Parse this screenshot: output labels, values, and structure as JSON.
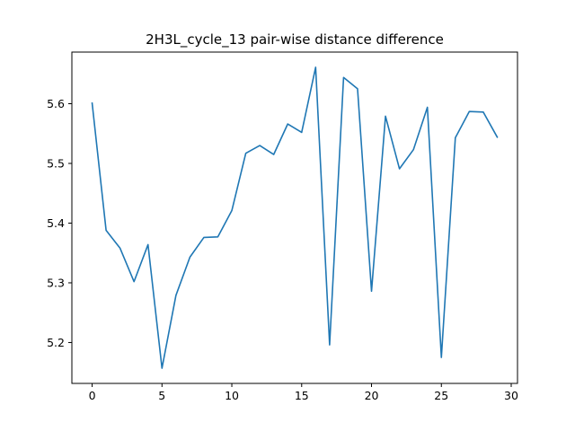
{
  "chart_data": {
    "type": "line",
    "title": "2H3L_cycle_13 pair-wise distance difference",
    "xlabel": "",
    "ylabel": "",
    "x": [
      0,
      1,
      2,
      3,
      4,
      5,
      6,
      7,
      8,
      9,
      10,
      11,
      12,
      13,
      14,
      15,
      16,
      17,
      18,
      19,
      20,
      21,
      22,
      23,
      24,
      25,
      26,
      27,
      28,
      29
    ],
    "series": [
      {
        "color": "#1f77b4",
        "values": [
          5.601,
          5.388,
          5.358,
          5.302,
          5.364,
          5.157,
          5.279,
          5.343,
          5.376,
          5.377,
          5.421,
          5.517,
          5.53,
          5.515,
          5.566,
          5.552,
          5.661,
          5.196,
          5.644,
          5.625,
          5.286,
          5.579,
          5.491,
          5.523,
          5.594,
          5.175,
          5.543,
          5.587,
          5.586,
          5.544
        ]
      }
    ],
    "xlim": [
      -1.45,
      30.45
    ],
    "ylim": [
      5.1315,
      5.6865
    ],
    "xticks": [
      0,
      5,
      10,
      15,
      20,
      25,
      30
    ],
    "yticks": [
      5.2,
      5.3,
      5.4,
      5.5,
      5.6
    ],
    "ytick_labels": [
      "5.2",
      "5.3",
      "5.4",
      "5.5",
      "5.6"
    ],
    "grid": false,
    "legend": "none"
  }
}
